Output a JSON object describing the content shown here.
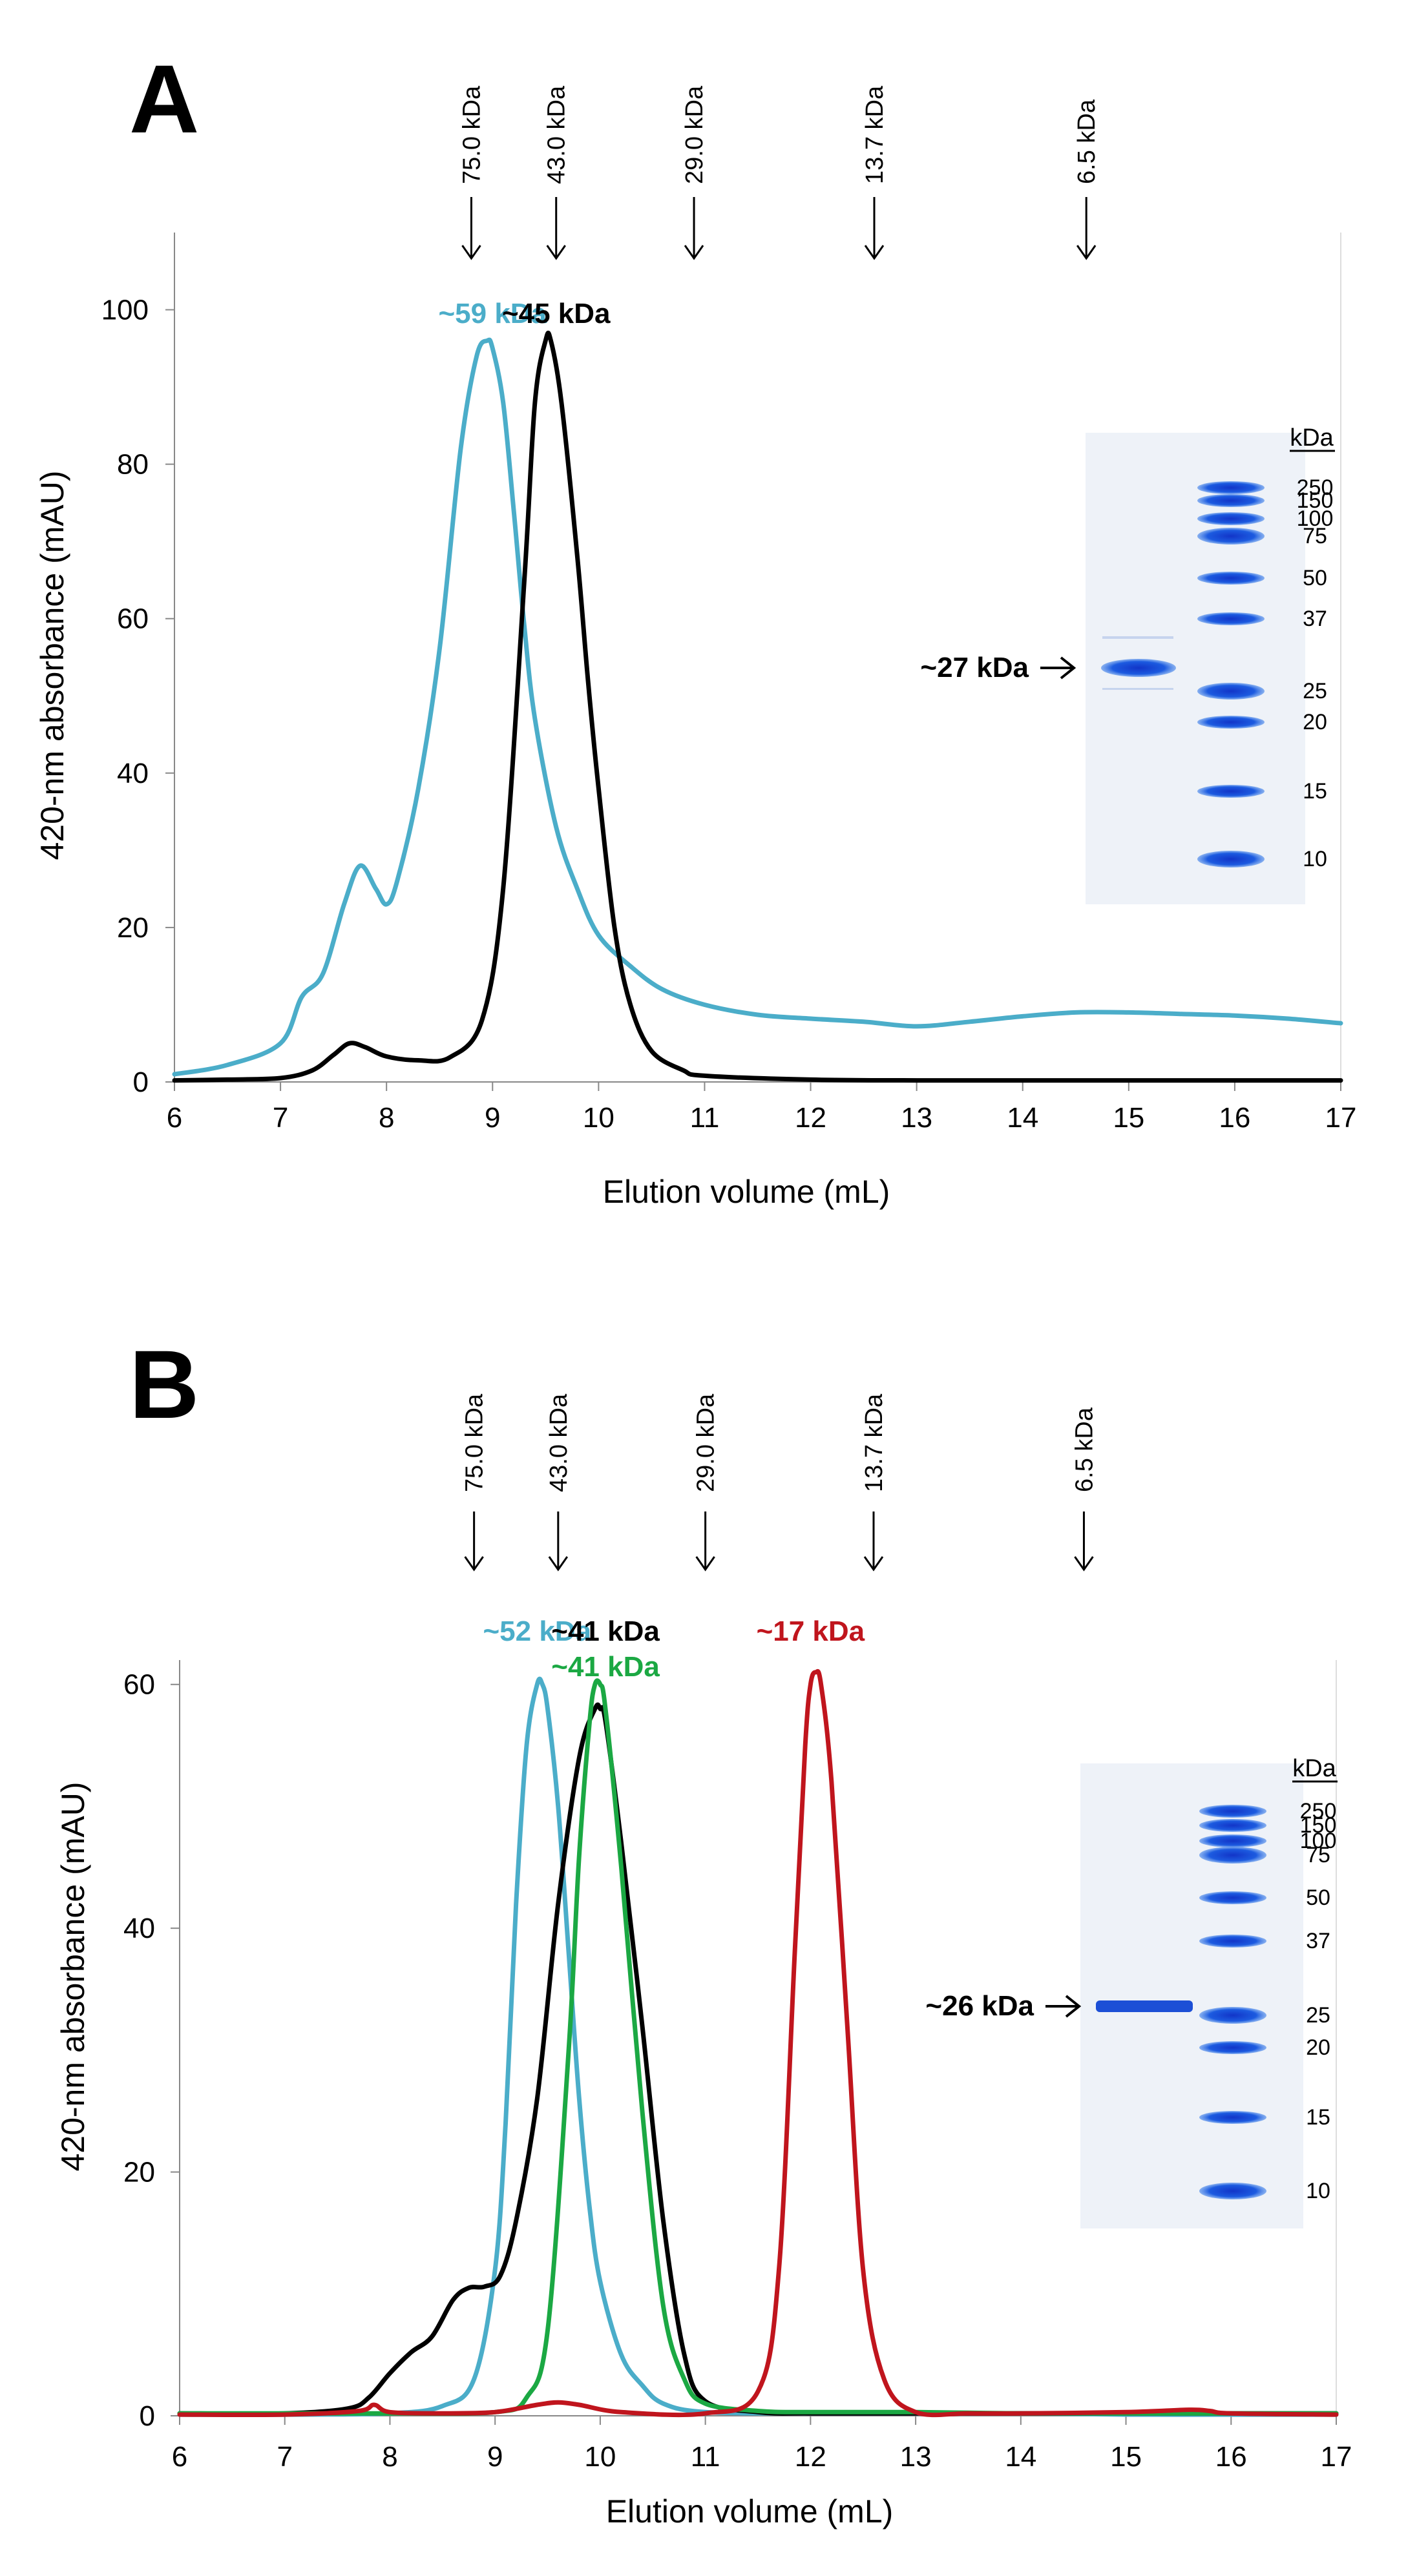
{
  "colors": {
    "cyan": "#4BADC9",
    "black": "#000000",
    "green": "#1BA843",
    "red": "#C0151D",
    "gel_blue": "#1C5BE0",
    "gel_bg": "#EEF2F8"
  },
  "chart_data": [
    {
      "panel": "A",
      "type": "line",
      "xlabel": "Elution volume (mL)",
      "ylabel": "420-nm absorbance (mAU)",
      "xlim": [
        6,
        17
      ],
      "ylim": [
        0,
        110
      ],
      "xticks": [
        "6",
        "7",
        "8",
        "9",
        "10",
        "11",
        "12",
        "13",
        "14",
        "15",
        "16",
        "17"
      ],
      "yticks": [
        "0",
        "20",
        "40",
        "60",
        "80",
        "100"
      ],
      "ytick_values": [
        0,
        20,
        40,
        60,
        80,
        100
      ],
      "markers": [
        {
          "label": "75.0 kDa",
          "x": 8.8
        },
        {
          "label": "43.0 kDa",
          "x": 9.6
        },
        {
          "label": "29.0 kDa",
          "x": 10.9
        },
        {
          "label": "13.7 kDa",
          "x": 12.6
        },
        {
          "label": "6.5 kDa",
          "x": 14.6
        }
      ],
      "series": [
        {
          "name": "~59 kDa",
          "color": "#4BADC9",
          "x": [
            6,
            6.5,
            7,
            7.2,
            7.4,
            7.6,
            7.75,
            7.9,
            8.0,
            8.1,
            8.3,
            8.5,
            8.7,
            8.85,
            8.95,
            9.0,
            9.1,
            9.2,
            9.3,
            9.4,
            9.6,
            9.8,
            10,
            10.3,
            10.6,
            11,
            11.5,
            12,
            12.5,
            13,
            13.5,
            14,
            14.5,
            15,
            15.5,
            16,
            16.5,
            17
          ],
          "y": [
            1,
            2.2,
            5,
            11,
            14,
            23,
            28,
            25,
            23,
            26,
            38,
            56,
            82,
            94,
            96,
            95,
            88,
            74,
            59,
            47,
            33,
            25,
            19,
            15,
            12,
            10,
            8.7,
            8.2,
            7.8,
            7.2,
            7.8,
            8.5,
            9,
            9,
            8.8,
            8.6,
            8.2,
            7.6
          ]
        },
        {
          "name": "~45 kDa",
          "color": "#000000",
          "x": [
            6,
            6.5,
            7,
            7.3,
            7.5,
            7.65,
            7.8,
            8.0,
            8.3,
            8.6,
            8.9,
            9.1,
            9.3,
            9.4,
            9.5,
            9.55,
            9.65,
            9.8,
            9.9,
            10,
            10.15,
            10.3,
            10.5,
            10.8,
            11,
            12,
            13,
            14,
            15,
            16,
            17
          ],
          "y": [
            0.2,
            0.3,
            0.5,
            1.5,
            3.5,
            5,
            4.5,
            3.3,
            2.8,
            3.2,
            8,
            25,
            65,
            88,
            96,
            96,
            88,
            68,
            52,
            38,
            20,
            10,
            4,
            1.5,
            0.8,
            0.3,
            0.2,
            0.2,
            0.2,
            0.2,
            0.2
          ]
        }
      ],
      "peak_labels": [
        {
          "text": "~59 kDa",
          "color": "#4BADC9",
          "x": 9.0
        },
        {
          "text": "~45 kDa",
          "color": "#000000",
          "x": 9.6
        }
      ],
      "gel": {
        "title": "kDa",
        "ladder": [
          "250",
          "150",
          "100",
          "75",
          "50",
          "37",
          "25",
          "20",
          "15",
          "10"
        ],
        "sample_band": "~27 kDa"
      }
    },
    {
      "panel": "B",
      "type": "line",
      "xlabel": "Elution volume (mL)",
      "ylabel": "420-nm absorbance (mAU)",
      "xlim": [
        6,
        17
      ],
      "ylim": [
        0,
        62
      ],
      "xticks": [
        "6",
        "7",
        "8",
        "9",
        "10",
        "11",
        "12",
        "13",
        "14",
        "15",
        "16",
        "17"
      ],
      "yticks": [
        "0",
        "20",
        "40",
        "60"
      ],
      "ytick_values": [
        0,
        20,
        40,
        60
      ],
      "markers": [
        {
          "label": "75.0 kDa",
          "x": 8.8
        },
        {
          "label": "43.0 kDa",
          "x": 9.6
        },
        {
          "label": "29.0 kDa",
          "x": 11.0
        },
        {
          "label": "13.7 kDa",
          "x": 12.6
        },
        {
          "label": "6.5 kDa",
          "x": 14.6
        }
      ],
      "series": [
        {
          "name": "~52 kDa",
          "color": "#4BADC9",
          "x": [
            6,
            7,
            8,
            8.5,
            8.8,
            9,
            9.1,
            9.2,
            9.3,
            9.4,
            9.45,
            9.5,
            9.6,
            9.7,
            9.8,
            9.9,
            10,
            10.2,
            10.4,
            10.6,
            11,
            12,
            13,
            14,
            15,
            16,
            17
          ],
          "y": [
            0.1,
            0.1,
            0.2,
            0.8,
            3,
            12,
            24,
            42,
            55,
            60,
            60,
            58,
            50,
            38,
            26,
            17,
            11,
            5,
            2.5,
            1,
            0.3,
            0.2,
            0.2,
            0.2,
            0.1,
            0.1,
            0.1
          ]
        },
        {
          "name": "~41 kDa (black)",
          "color": "#000000",
          "x": [
            6,
            7,
            7.6,
            7.8,
            8.0,
            8.2,
            8.4,
            8.6,
            8.75,
            8.9,
            9.05,
            9.2,
            9.4,
            9.6,
            9.8,
            9.95,
            10.0,
            10.05,
            10.2,
            10.4,
            10.6,
            10.8,
            11,
            11.5,
            12,
            13,
            14,
            15,
            16,
            17
          ],
          "y": [
            0.2,
            0.2,
            0.6,
            1.5,
            3.5,
            5.2,
            6.5,
            9.5,
            10.5,
            10.6,
            11.5,
            16,
            26,
            42,
            54,
            58,
            58,
            57,
            47,
            32,
            16,
            5,
            1.2,
            0.3,
            0.2,
            0.2,
            0.2,
            0.2,
            0.2,
            0.2
          ]
        },
        {
          "name": "~41 kDa (green)",
          "color": "#1BA843",
          "x": [
            6,
            7,
            8,
            9,
            9.3,
            9.5,
            9.7,
            9.8,
            9.9,
            9.95,
            10.0,
            10.05,
            10.2,
            10.4,
            10.6,
            10.8,
            11,
            11.5,
            12,
            13,
            14,
            15,
            16,
            17
          ],
          "y": [
            0.2,
            0.2,
            0.2,
            0.3,
            1.5,
            7,
            30,
            46,
            57,
            60,
            60,
            58,
            45,
            25,
            9,
            3,
            1,
            0.4,
            0.3,
            0.3,
            0.2,
            0.2,
            0.2,
            0.2
          ]
        },
        {
          "name": "~17 kDa",
          "color": "#C0151D",
          "x": [
            6,
            7,
            7.7,
            7.85,
            8.0,
            8.5,
            9.0,
            9.4,
            9.6,
            9.8,
            10.2,
            11,
            11.5,
            11.7,
            11.85,
            11.95,
            12.0,
            12.05,
            12.1,
            12.2,
            12.35,
            12.5,
            12.7,
            13,
            13.5,
            14,
            15,
            15.6,
            15.8,
            16,
            17
          ],
          "y": [
            0.1,
            0.1,
            0.4,
            0.9,
            0.3,
            0.2,
            0.3,
            0.9,
            1.1,
            0.9,
            0.3,
            0.2,
            2,
            12,
            38,
            55,
            60,
            61,
            60,
            52,
            32,
            12,
            3,
            0.3,
            0.2,
            0.2,
            0.3,
            0.5,
            0.4,
            0.2,
            0.1
          ]
        }
      ],
      "peak_labels": [
        {
          "text": "~52 kDa",
          "color": "#4BADC9",
          "x": 9.4
        },
        {
          "text": "~41 kDa",
          "color": "#000000",
          "x": 10.05
        },
        {
          "text": "~41 kDa",
          "color": "#1BA843",
          "x": 10.05
        },
        {
          "text": "~17 kDa",
          "color": "#C0151D",
          "x": 12.0
        }
      ],
      "gel": {
        "title": "kDa",
        "ladder": [
          "250",
          "150",
          "100",
          "75",
          "50",
          "37",
          "25",
          "20",
          "15",
          "10"
        ],
        "sample_band": "~26 kDa"
      }
    }
  ]
}
